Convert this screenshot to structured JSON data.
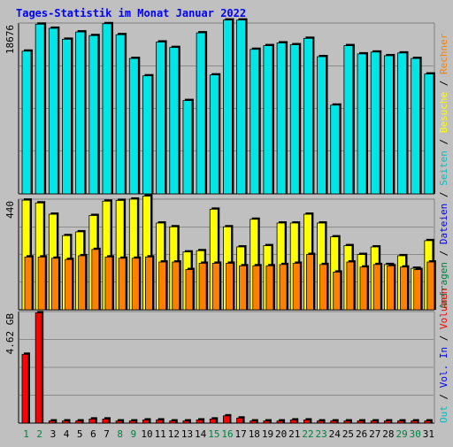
{
  "chart_data": {
    "type": "bar",
    "title": "Tages-Statistik im Monat Januar 2022",
    "categories": [
      "1",
      "2",
      "3",
      "4",
      "5",
      "6",
      "7",
      "8",
      "9",
      "10",
      "11",
      "12",
      "13",
      "14",
      "15",
      "16",
      "17",
      "18",
      "19",
      "20",
      "21",
      "22",
      "23",
      "24",
      "25",
      "26",
      "27",
      "28",
      "29",
      "30",
      "31"
    ],
    "weekend_days": [
      "1",
      "2",
      "8",
      "9",
      "15",
      "16",
      "22",
      "23",
      "29",
      "30"
    ],
    "panels": [
      {
        "id": "requests",
        "ylabel_max": "18676",
        "ymax": 18676,
        "series": [
          {
            "name": "Anfragen",
            "color": "#00e6e6",
            "values": [
              15600,
              18550,
              18100,
              16900,
              17700,
              17300,
              18600,
              17400,
              14800,
              12900,
              16600,
              16000,
              10200,
              17600,
              13000,
              19000,
              19000,
              15800,
              16200,
              16500,
              16300,
              17000,
              15000,
              9700,
              16200,
              15300,
              15500,
              15100,
              15400,
              14800,
              13100
            ]
          },
          {
            "name": "Dateien",
            "color": "#0000ff",
            "values": []
          },
          {
            "name": "Seiten",
            "color": "#00c0c0",
            "values": []
          }
        ]
      },
      {
        "id": "visits",
        "ylabel_max": "440",
        "ymax": 440,
        "series": [
          {
            "name": "Besuche",
            "color": "#ffff00",
            "values": [
              436,
              425,
              380,
              295,
              310,
              375,
              432,
              435,
              440,
              452,
              345,
              330,
              230,
              235,
              400,
              330,
              250,
              360,
              255,
              345,
              345,
              380,
              345,
              290,
              255,
              220,
              250,
              180,
              215,
              165,
              275
            ]
          },
          {
            "name": "Rechner",
            "color": "#ff8000",
            "values": [
              210,
              210,
              205,
              200,
              215,
              240,
              210,
              205,
              205,
              210,
              190,
              190,
              160,
              185,
              185,
              185,
              175,
              175,
              175,
              180,
              185,
              220,
              180,
              150,
              190,
              170,
              180,
              175,
              170,
              160,
              190
            ]
          }
        ]
      },
      {
        "id": "volume",
        "ylabel_max": "4.62 GB",
        "ymax": 4.62,
        "series": [
          {
            "name": "Volumen",
            "color": "#ff0000",
            "values": [
              2.85,
              4.57,
              0.09,
              0.09,
              0.09,
              0.17,
              0.17,
              0.09,
              0.09,
              0.13,
              0.13,
              0.09,
              0.09,
              0.13,
              0.17,
              0.3,
              0.21,
              0.09,
              0.09,
              0.09,
              0.13,
              0.13,
              0.09,
              0.09,
              0.09,
              0.09,
              0.09,
              0.09,
              0.09,
              0.09,
              0.09
            ]
          },
          {
            "name": "Vol. In",
            "color": "#0000ff",
            "values": []
          },
          {
            "name": "Vol. Out",
            "color": "#00c0c0",
            "values": []
          }
        ]
      }
    ],
    "legend_right": {
      "top": [
        {
          "text": "Anfragen",
          "color": "#008040"
        },
        {
          "text": " / ",
          "color": "#000000"
        },
        {
          "text": "Dateien",
          "color": "#0000ff"
        },
        {
          "text": " / ",
          "color": "#000000"
        },
        {
          "text": "Seiten",
          "color": "#00c0c0"
        },
        {
          "text": " / ",
          "color": "#000000"
        },
        {
          "text": "Besuche",
          "color": "#ffff00"
        },
        {
          "text": " / ",
          "color": "#000000"
        },
        {
          "text": "Rechner",
          "color": "#ff8000"
        }
      ],
      "bottom": [
        {
          "text": "Out",
          "color": "#00c0c0"
        },
        {
          "text": " / ",
          "color": "#000000"
        },
        {
          "text": "Vol. In",
          "color": "#0000ff"
        },
        {
          "text": " / ",
          "color": "#000000"
        },
        {
          "text": "Volumen",
          "color": "#ff0000"
        }
      ]
    },
    "colors": {
      "background": "#c0c0c0",
      "title": "#0000ff",
      "weekday_label": "#000000",
      "weekend_label": "#008040",
      "bar_shadow": "#000000"
    },
    "grid": true
  }
}
